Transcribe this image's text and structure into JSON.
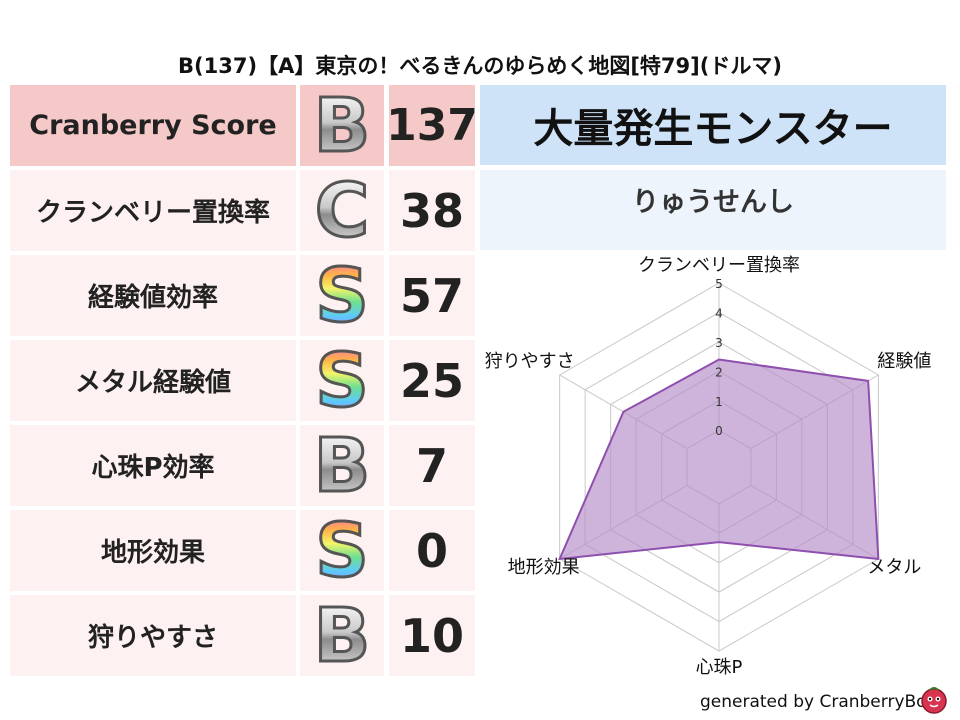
{
  "title": "B(137)【A】東京の！べるきんのゆらめく地図[特79](ドルマ)",
  "rows": [
    {
      "label": "Cranberry Score",
      "grade": "B",
      "grade_style": "grey",
      "score": "137"
    },
    {
      "label": "クランベリー置換率",
      "grade": "C",
      "grade_style": "grey",
      "score": "38"
    },
    {
      "label": "経験値効率",
      "grade": "S",
      "grade_style": "rainbow",
      "score": "57"
    },
    {
      "label": "メタル経験値",
      "grade": "S",
      "grade_style": "rainbow",
      "score": "25"
    },
    {
      "label": "心珠P効率",
      "grade": "B",
      "grade_style": "grey",
      "score": "7"
    },
    {
      "label": "地形効果",
      "grade": "S",
      "grade_style": "rainbow",
      "score": "0"
    },
    {
      "label": "狩りやすさ",
      "grade": "B",
      "grade_style": "grey",
      "score": "10"
    }
  ],
  "monster": {
    "heading": "大量発生モンスター",
    "name": "りゅうせんし"
  },
  "footer": "generated by CranberryBot",
  "chart_data": {
    "type": "radar",
    "axes": [
      "クランベリー置換率",
      "経験値",
      "メタル",
      "心珠P",
      "地形効果",
      "狩りやすさ"
    ],
    "values": [
      2.4,
      4.6,
      5.0,
      1.3,
      5.0,
      2.5
    ],
    "ticks": [
      "0",
      "1",
      "2",
      "3",
      "4",
      "5"
    ],
    "range": [
      0,
      5
    ],
    "fill": "#b48cc8",
    "stroke": "#8e4fae",
    "grid_color": "#c8c8c8"
  }
}
